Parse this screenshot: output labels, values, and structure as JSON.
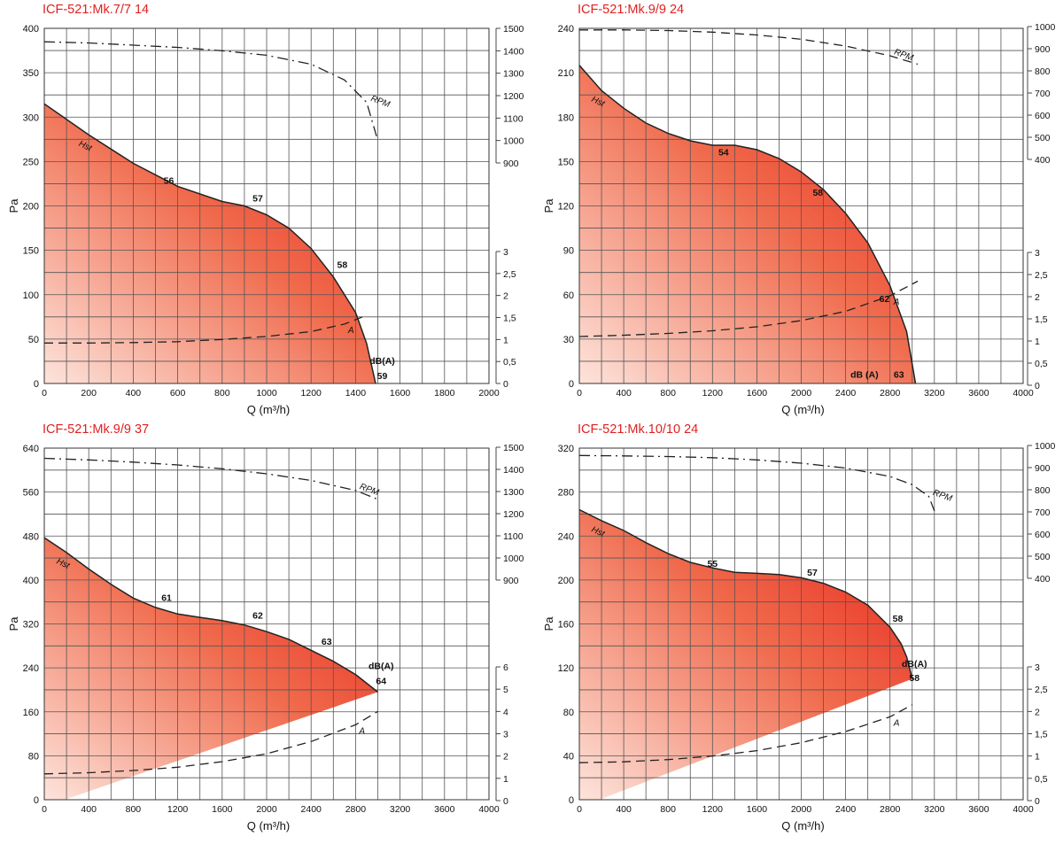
{
  "colors": {
    "title": "#e02020",
    "fill_strong": "#e8231b",
    "fill_light": "#fde4dc",
    "grid": "#555555",
    "curve": "#222222"
  },
  "chart_data": [
    {
      "type": "area",
      "title": "ICF-521:Mk.7/7 14",
      "xlabel": "Q (m³/h)",
      "ylabel": "Pa",
      "xlim": [
        0,
        2000
      ],
      "ylim": [
        0,
        400
      ],
      "x_ticks": [
        0,
        200,
        400,
        600,
        800,
        1000,
        1200,
        1400,
        1600,
        1800,
        2000
      ],
      "y_ticks": [
        0,
        50,
        100,
        150,
        200,
        250,
        300,
        350,
        400
      ],
      "grid": true,
      "series": [
        {
          "name": "Hst",
          "axis": "Pa",
          "x": [
            0,
            200,
            400,
            600,
            800,
            900,
            1000,
            1100,
            1200,
            1300,
            1400,
            1450,
            1490
          ],
          "y": [
            315,
            280,
            248,
            222,
            205,
            200,
            190,
            175,
            152,
            120,
            80,
            45,
            0
          ]
        },
        {
          "name": "RPM",
          "axis": "RPM",
          "dash": "dashdot",
          "x": [
            0,
            200,
            400,
            600,
            800,
            1000,
            1200,
            1350,
            1450,
            1500
          ],
          "y": [
            1440,
            1435,
            1425,
            1415,
            1400,
            1380,
            1340,
            1270,
            1170,
            1000
          ]
        },
        {
          "name": "A",
          "axis": "A",
          "dash": "dash",
          "x": [
            0,
            200,
            400,
            600,
            800,
            1000,
            1200,
            1350,
            1450
          ],
          "y": [
            0.92,
            0.92,
            0.93,
            0.95,
            1.0,
            1.07,
            1.18,
            1.35,
            1.55
          ]
        }
      ],
      "right_axes": [
        {
          "name": "RPM",
          "range": [
            900,
            1500
          ],
          "ticks": [
            1500,
            1400,
            1300,
            1200,
            1100,
            1000,
            900
          ],
          "labels": [
            "1500",
            "1400",
            "1300",
            "1200",
            "1100",
            "1000",
            "900"
          ]
        },
        {
          "name": "A",
          "range": [
            0,
            3
          ],
          "ticks": [
            3,
            2.5,
            2,
            1.5,
            1,
            0.5,
            0
          ],
          "labels": [
            "3",
            "2,5",
            "2",
            "1,5",
            "1",
            "0,5",
            "0"
          ]
        }
      ],
      "annotations": [
        {
          "text": "56",
          "x": 560,
          "y": 225
        },
        {
          "text": "57",
          "x": 960,
          "y": 205
        },
        {
          "text": "58",
          "x": 1340,
          "y": 130
        },
        {
          "text": "dB(A)",
          "x": 1520,
          "y": 22
        },
        {
          "text": "59",
          "x": 1520,
          "y": 5
        }
      ]
    },
    {
      "type": "area",
      "title": "ICF-521:Mk.9/9 24",
      "xlabel": "Q (m³/h)",
      "ylabel": "Pa",
      "xlim": [
        0,
        4000
      ],
      "ylim": [
        0,
        240
      ],
      "x_ticks": [
        0,
        400,
        800,
        1200,
        1600,
        2000,
        2400,
        2800,
        3200,
        3600,
        4000
      ],
      "y_ticks": [
        0,
        30,
        60,
        90,
        120,
        150,
        180,
        210,
        240
      ],
      "grid": true,
      "series": [
        {
          "name": "Hst",
          "axis": "Pa",
          "x": [
            0,
            200,
            400,
            600,
            800,
            1000,
            1200,
            1400,
            1600,
            1800,
            2000,
            2200,
            2400,
            2600,
            2800,
            2950,
            3030
          ],
          "y": [
            215,
            198,
            186,
            176,
            169,
            164,
            161,
            161,
            158,
            152,
            143,
            131,
            115,
            95,
            66,
            35,
            0
          ]
        },
        {
          "name": "RPM",
          "axis": "RPM",
          "dash": "dash",
          "x": [
            0,
            400,
            800,
            1200,
            1600,
            2000,
            2400,
            2800,
            3050
          ],
          "y": [
            985,
            985,
            982,
            975,
            962,
            943,
            912,
            868,
            830
          ]
        },
        {
          "name": "A",
          "axis": "A",
          "dash": "dash",
          "x": [
            0,
            400,
            800,
            1200,
            1600,
            2000,
            2400,
            2800,
            3050
          ],
          "y": [
            1.1,
            1.13,
            1.17,
            1.23,
            1.32,
            1.46,
            1.67,
            2.02,
            2.35
          ]
        }
      ],
      "right_axes": [
        {
          "name": "RPM",
          "range": [
            400,
            1000
          ],
          "ticks": [
            1000,
            900,
            800,
            700,
            600,
            500,
            400
          ],
          "labels": [
            "1000",
            "900",
            "800",
            "700",
            "600",
            "500",
            "400"
          ]
        },
        {
          "name": "A",
          "range": [
            0,
            3
          ],
          "ticks": [
            3,
            2.5,
            2,
            1.5,
            1,
            0.5,
            0
          ],
          "labels": [
            "3",
            "2,5",
            "2",
            "1,5",
            "1",
            "0,5",
            "0"
          ]
        }
      ],
      "annotations": [
        {
          "text": "54",
          "x": 1300,
          "y": 154
        },
        {
          "text": "58",
          "x": 2150,
          "y": 127
        },
        {
          "text": "62",
          "x": 2750,
          "y": 55
        },
        {
          "text": "dB (A)",
          "x": 2570,
          "y": 4
        },
        {
          "text": "63",
          "x": 2880,
          "y": 4
        }
      ]
    },
    {
      "type": "area",
      "title": "ICF-521:Mk.9/9 37",
      "xlabel": "Q (m³/h)",
      "ylabel": "Pa",
      "xlim": [
        0,
        4000
      ],
      "ylim": [
        0,
        640
      ],
      "x_ticks": [
        0,
        400,
        800,
        1200,
        1600,
        2000,
        2400,
        2800,
        3200,
        3600,
        4000
      ],
      "y_ticks": [
        0,
        80,
        160,
        240,
        320,
        400,
        480,
        560,
        640
      ],
      "grid": true,
      "series": [
        {
          "name": "Hst",
          "axis": "Pa",
          "x": [
            0,
            200,
            400,
            600,
            800,
            1000,
            1200,
            1400,
            1600,
            1800,
            2000,
            2200,
            2400,
            2600,
            2800,
            3000
          ],
          "y": [
            477,
            450,
            420,
            392,
            367,
            350,
            338,
            332,
            326,
            318,
            306,
            292,
            272,
            252,
            228,
            196
          ]
        },
        {
          "name": "RPM",
          "axis": "RPM",
          "dash": "dashdot",
          "x": [
            0,
            400,
            800,
            1200,
            1600,
            2000,
            2400,
            2800,
            3000
          ],
          "y": [
            1450,
            1443,
            1433,
            1420,
            1403,
            1380,
            1350,
            1305,
            1265
          ]
        },
        {
          "name": "A",
          "axis": "A",
          "dash": "dash",
          "x": [
            0,
            400,
            800,
            1200,
            1600,
            2000,
            2400,
            2800,
            3000
          ],
          "y": [
            1.2,
            1.25,
            1.35,
            1.5,
            1.75,
            2.1,
            2.65,
            3.4,
            4.0
          ]
        }
      ],
      "right_axes": [
        {
          "name": "RPM",
          "range": [
            900,
            1500
          ],
          "ticks": [
            1500,
            1400,
            1300,
            1200,
            1100,
            1000,
            900
          ],
          "labels": [
            "1500",
            "1400",
            "1300",
            "1200",
            "1100",
            "1000",
            "900"
          ]
        },
        {
          "name": "A",
          "range": [
            0,
            6
          ],
          "ticks": [
            6,
            5,
            4,
            3,
            2,
            1,
            0
          ],
          "labels": [
            "6",
            "5",
            "4",
            "3",
            "2",
            "1",
            "0"
          ]
        }
      ],
      "annotations": [
        {
          "text": "61",
          "x": 1100,
          "y": 362
        },
        {
          "text": "62",
          "x": 1920,
          "y": 330
        },
        {
          "text": "63",
          "x": 2540,
          "y": 282
        },
        {
          "text": "dB(A)",
          "x": 3030,
          "y": 238
        },
        {
          "text": "64",
          "x": 3030,
          "y": 210
        }
      ]
    },
    {
      "type": "area",
      "title": "ICF-521:Mk.10/10 24",
      "xlabel": "Q (m³/h)",
      "ylabel": "Pa",
      "xlim": [
        0,
        4000
      ],
      "ylim": [
        0,
        320
      ],
      "x_ticks": [
        0,
        400,
        800,
        1200,
        1600,
        2000,
        2400,
        2800,
        3200,
        3600,
        4000
      ],
      "y_ticks": [
        0,
        40,
        80,
        120,
        160,
        200,
        240,
        280,
        320
      ],
      "grid": true,
      "series": [
        {
          "name": "Hst",
          "axis": "Pa",
          "x": [
            0,
            200,
            400,
            600,
            800,
            1000,
            1200,
            1400,
            1600,
            1800,
            2000,
            2200,
            2400,
            2600,
            2800,
            2900,
            2950,
            3000
          ],
          "y": [
            264,
            254,
            245,
            234,
            224,
            216,
            211,
            207,
            206,
            205,
            202,
            197,
            189,
            177,
            157,
            142,
            130,
            110
          ]
        },
        {
          "name": "RPM",
          "axis": "RPM",
          "dash": "dashdot",
          "x": [
            0,
            400,
            800,
            1200,
            1600,
            2000,
            2400,
            2800,
            3000,
            3150,
            3200
          ],
          "y": [
            955,
            953,
            950,
            945,
            935,
            920,
            898,
            860,
            823,
            770,
            705
          ]
        },
        {
          "name": "A",
          "axis": "A",
          "dash": "dash",
          "x": [
            0,
            400,
            800,
            1200,
            1600,
            2000,
            2400,
            2800,
            3000
          ],
          "y": [
            0.85,
            0.87,
            0.92,
            1.0,
            1.12,
            1.3,
            1.55,
            1.88,
            2.15
          ]
        }
      ],
      "right_axes": [
        {
          "name": "RPM",
          "range": [
            400,
            1000
          ],
          "ticks": [
            1000,
            900,
            800,
            700,
            600,
            500,
            400
          ],
          "labels": [
            "1000",
            "900",
            "800",
            "700",
            "600",
            "500",
            "400"
          ]
        },
        {
          "name": "A",
          "range": [
            0,
            3
          ],
          "ticks": [
            3,
            2.5,
            2,
            1.5,
            1,
            0.5,
            0
          ],
          "labels": [
            "3",
            "2,5",
            "2",
            "1,5",
            "1",
            "0,5",
            "0"
          ]
        }
      ],
      "annotations": [
        {
          "text": "55",
          "x": 1200,
          "y": 212
        },
        {
          "text": "57",
          "x": 2100,
          "y": 204
        },
        {
          "text": "58",
          "x": 2870,
          "y": 162
        },
        {
          "text": "dB(A)",
          "x": 3020,
          "y": 121
        },
        {
          "text": "58",
          "x": 3020,
          "y": 108
        }
      ]
    }
  ]
}
